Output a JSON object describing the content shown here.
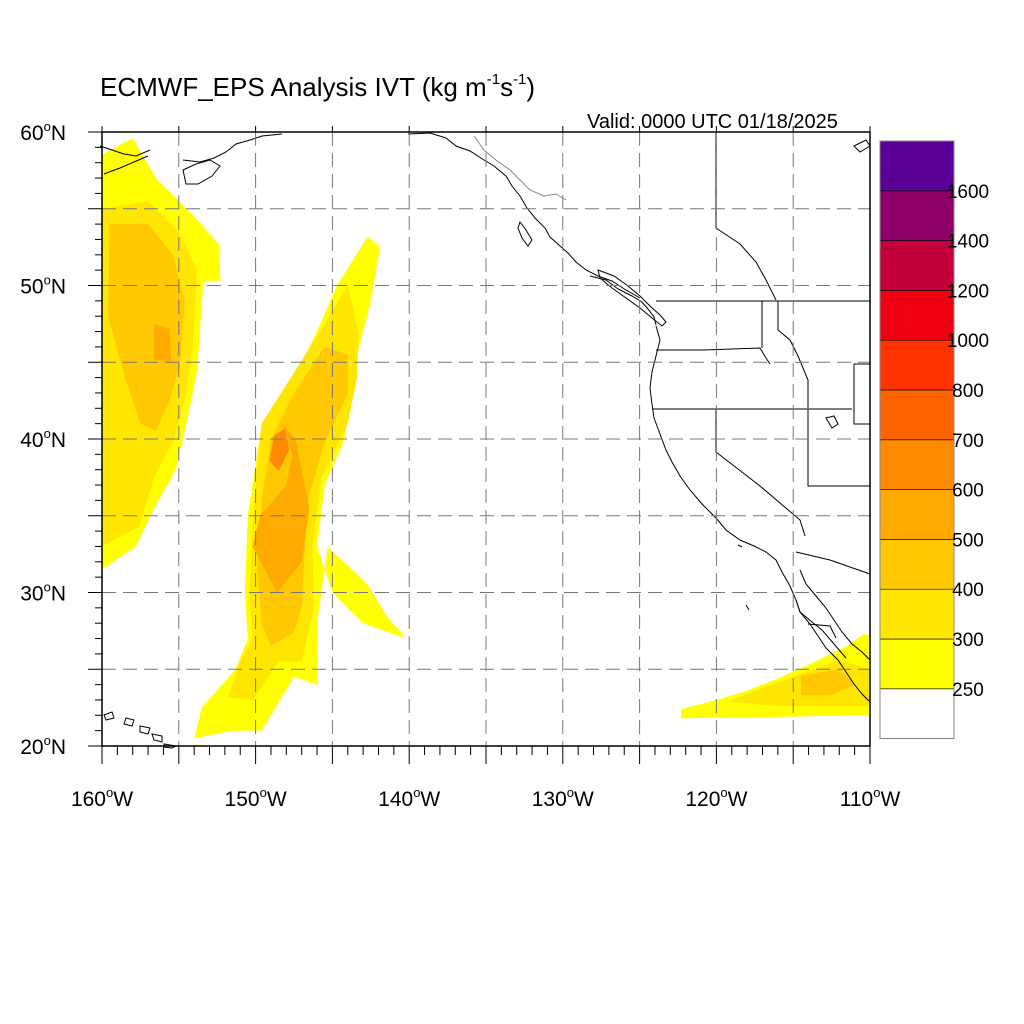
{
  "title": {
    "prefix": "ECMWF_EPS Analysis IVT (kg m",
    "exp1": "-1",
    "mid": "s",
    "exp2": "-1",
    "suffix": ")"
  },
  "valid": "Valid: 0000 UTC 01/18/2025",
  "lat_labels": [
    {
      "deg": "60",
      "sup": "o",
      "hem": "N",
      "value": 60
    },
    {
      "deg": "50",
      "sup": "o",
      "hem": "N",
      "value": 50
    },
    {
      "deg": "40",
      "sup": "o",
      "hem": "N",
      "value": 40
    },
    {
      "deg": "30",
      "sup": "o",
      "hem": "N",
      "value": 30
    },
    {
      "deg": "20",
      "sup": "o",
      "hem": "N",
      "value": 20
    }
  ],
  "lon_labels": [
    {
      "deg": "160",
      "sup": "o",
      "hem": "W",
      "value": -160
    },
    {
      "deg": "150",
      "sup": "o",
      "hem": "W",
      "value": -150
    },
    {
      "deg": "140",
      "sup": "o",
      "hem": "W",
      "value": -140
    },
    {
      "deg": "130",
      "sup": "o",
      "hem": "W",
      "value": -130
    },
    {
      "deg": "120",
      "sup": "o",
      "hem": "W",
      "value": -120
    },
    {
      "deg": "110",
      "sup": "o",
      "hem": "W",
      "value": -110
    }
  ],
  "colorbar": {
    "bins": [
      {
        "color": "#ffffff"
      },
      {
        "color": "#ffff00"
      },
      {
        "color": "#ffe600"
      },
      {
        "color": "#ffc800"
      },
      {
        "color": "#ffaa00"
      },
      {
        "color": "#ff8c00"
      },
      {
        "color": "#ff6400"
      },
      {
        "color": "#ff3200"
      },
      {
        "color": "#ee0010"
      },
      {
        "color": "#c4003c"
      },
      {
        "color": "#8c0068"
      },
      {
        "color": "#5a0096"
      }
    ],
    "labels": [
      "250",
      "300",
      "400",
      "500",
      "600",
      "700",
      "800",
      "1000",
      "1200",
      "1400",
      "1600"
    ]
  },
  "map_extent": {
    "lon_min": -160,
    "lon_max": -110,
    "lat_min": 20,
    "lat_max": 60
  },
  "ivt_areas": [
    {
      "level": 1,
      "points": [
        [
          -160,
          58.5
        ],
        [
          -158,
          59.6
        ],
        [
          -156.5,
          57
        ],
        [
          -154,
          54.5
        ],
        [
          -152.4,
          52.7
        ],
        [
          -152.3,
          50.3
        ],
        [
          -153.4,
          50.3
        ],
        [
          -153.8,
          44.5
        ],
        [
          -154.4,
          41.5
        ],
        [
          -155.2,
          38
        ],
        [
          -156.6,
          35.5
        ],
        [
          -157.8,
          33
        ],
        [
          -160,
          31.5
        ]
      ]
    },
    {
      "level": 2,
      "points": [
        [
          -160,
          55
        ],
        [
          -157,
          55.5
        ],
        [
          -155,
          53.5
        ],
        [
          -153.8,
          51
        ],
        [
          -154.1,
          46
        ],
        [
          -154.5,
          43
        ],
        [
          -155.3,
          40
        ],
        [
          -156.6,
          37.5
        ],
        [
          -157.6,
          34.3
        ],
        [
          -160,
          33
        ]
      ]
    },
    {
      "level": 3,
      "points": [
        [
          -159.5,
          54
        ],
        [
          -157,
          54
        ],
        [
          -155.4,
          52
        ],
        [
          -154.6,
          49
        ],
        [
          -154.9,
          45
        ],
        [
          -155.6,
          42.5
        ],
        [
          -156.5,
          40.5
        ],
        [
          -157.5,
          41
        ],
        [
          -158.5,
          44
        ],
        [
          -159.6,
          48
        ]
      ]
    },
    {
      "level": 4,
      "points": [
        [
          -156.6,
          47.5
        ],
        [
          -155.6,
          47.2
        ],
        [
          -155.5,
          45
        ],
        [
          -156.6,
          45.2
        ]
      ]
    },
    {
      "level": 1,
      "points": [
        [
          -142.7,
          53.2
        ],
        [
          -141.9,
          52.5
        ],
        [
          -142.5,
          49
        ],
        [
          -143.5,
          45
        ],
        [
          -144.2,
          40
        ],
        [
          -145.5,
          37
        ],
        [
          -146,
          33
        ],
        [
          -145,
          30
        ],
        [
          -143,
          28
        ],
        [
          -140.2,
          27
        ],
        [
          -141.5,
          28.5
        ],
        [
          -142.7,
          30.5
        ],
        [
          -145.3,
          33
        ],
        [
          -146,
          28
        ],
        [
          -146,
          24
        ],
        [
          -147.5,
          24.5
        ],
        [
          -149.6,
          21
        ],
        [
          -151.5,
          21
        ],
        [
          -154,
          20.5
        ],
        [
          -153.5,
          22.5
        ],
        [
          -151.3,
          25
        ],
        [
          -150.5,
          27
        ],
        [
          -150.7,
          30
        ],
        [
          -150.5,
          35
        ],
        [
          -149.6,
          41
        ],
        [
          -147.5,
          44
        ],
        [
          -146,
          47
        ],
        [
          -144.7,
          50
        ]
      ]
    },
    {
      "level": 2,
      "points": [
        [
          -144,
          50
        ],
        [
          -143.3,
          47
        ],
        [
          -143.4,
          44
        ],
        [
          -144,
          41
        ],
        [
          -145.7,
          37.5
        ],
        [
          -146.3,
          33
        ],
        [
          -146.2,
          29
        ],
        [
          -147,
          25.5
        ],
        [
          -148.5,
          25.5
        ],
        [
          -150.2,
          23
        ],
        [
          -151.8,
          23.2
        ],
        [
          -151,
          25.5
        ],
        [
          -150.2,
          27
        ],
        [
          -150.4,
          30
        ],
        [
          -150.1,
          36
        ],
        [
          -149.6,
          41
        ],
        [
          -147.7,
          44
        ],
        [
          -146,
          46.7
        ]
      ]
    },
    {
      "level": 3,
      "points": [
        [
          -145.5,
          46
        ],
        [
          -144,
          45.5
        ],
        [
          -144,
          43
        ],
        [
          -145.6,
          39.5
        ],
        [
          -146.6,
          36
        ],
        [
          -146.8,
          33
        ],
        [
          -147,
          29
        ],
        [
          -147.5,
          27.4
        ],
        [
          -149,
          26.5
        ],
        [
          -149.6,
          28
        ],
        [
          -149.9,
          31.5
        ],
        [
          -149.6,
          36
        ],
        [
          -149,
          40
        ],
        [
          -147.5,
          43
        ]
      ]
    },
    {
      "level": 4,
      "points": [
        [
          -148.3,
          41
        ],
        [
          -147.6,
          39
        ],
        [
          -148,
          37
        ],
        [
          -149.7,
          35
        ],
        [
          -150.2,
          33
        ],
        [
          -148.6,
          30
        ],
        [
          -147,
          32
        ],
        [
          -146.5,
          35.5
        ],
        [
          -147,
          38
        ],
        [
          -147.4,
          40
        ]
      ]
    },
    {
      "level": 5,
      "points": [
        [
          -148.1,
          40.7
        ],
        [
          -147.8,
          39.3
        ],
        [
          -148.5,
          37.9
        ],
        [
          -149.1,
          38.6
        ],
        [
          -148.8,
          40.2
        ]
      ]
    },
    {
      "level": 1,
      "points": [
        [
          -111.5,
          26.5
        ],
        [
          -110.4,
          27.3
        ],
        [
          -110,
          27.2
        ],
        [
          -110,
          22
        ],
        [
          -122.3,
          21.8
        ],
        [
          -122.3,
          22.4
        ],
        [
          -120,
          23
        ],
        [
          -118,
          23.6
        ],
        [
          -116,
          24.4
        ],
        [
          -114,
          25.3
        ]
      ]
    },
    {
      "level": 2,
      "points": [
        [
          -112,
          25.6
        ],
        [
          -110,
          25
        ],
        [
          -110,
          22.6
        ],
        [
          -116,
          22.6
        ],
        [
          -119.2,
          22.9
        ],
        [
          -117.5,
          23.6
        ],
        [
          -115,
          24.5
        ]
      ]
    },
    {
      "level": 3,
      "points": [
        [
          -114.5,
          24.6
        ],
        [
          -112,
          25
        ],
        [
          -111,
          24
        ],
        [
          -112.5,
          23.3
        ],
        [
          -114.5,
          23.3
        ]
      ]
    }
  ]
}
